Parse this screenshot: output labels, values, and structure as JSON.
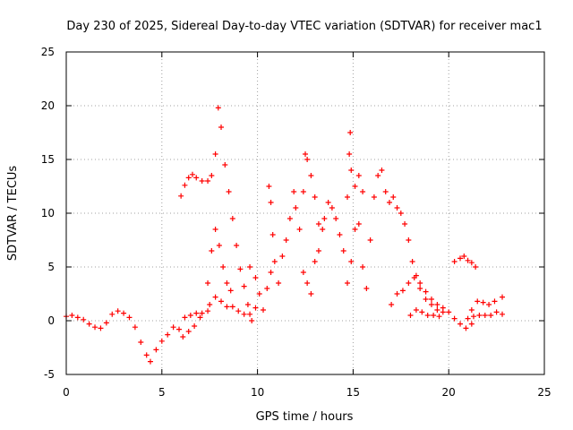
{
  "chart_data": {
    "type": "scatter",
    "title": "Day 230 of 2025, Sidereal Day-to-day VTEC variation (SDTVAR) for receiver mac1",
    "xlabel": "GPS time / hours",
    "ylabel": "SDTVAR / TECUs",
    "xlim": [
      0,
      25
    ],
    "ylim": [
      -5,
      25
    ],
    "xticks": [
      "0",
      "5",
      "10",
      "15",
      "20",
      "25"
    ],
    "yticks": [
      "-5",
      "0",
      "5",
      "10",
      "15",
      "20",
      "25"
    ],
    "grid": true,
    "marker": "+",
    "series": [
      {
        "name": "SDTVAR",
        "color": "#ff0000",
        "points": [
          [
            0.0,
            0.4
          ],
          [
            0.3,
            0.5
          ],
          [
            0.6,
            0.3
          ],
          [
            0.9,
            0.1
          ],
          [
            1.2,
            -0.3
          ],
          [
            1.5,
            -0.6
          ],
          [
            1.8,
            -0.7
          ],
          [
            2.1,
            -0.2
          ],
          [
            2.4,
            0.6
          ],
          [
            2.7,
            0.9
          ],
          [
            3.0,
            0.7
          ],
          [
            3.3,
            0.3
          ],
          [
            3.6,
            -0.6
          ],
          [
            3.9,
            -2.0
          ],
          [
            4.2,
            -3.2
          ],
          [
            4.4,
            -3.8
          ],
          [
            4.7,
            -2.7
          ],
          [
            5.0,
            -1.9
          ],
          [
            5.3,
            -1.3
          ],
          [
            5.6,
            -0.6
          ],
          [
            5.9,
            -0.8
          ],
          [
            6.2,
            0.3
          ],
          [
            6.5,
            0.5
          ],
          [
            6.8,
            0.7
          ],
          [
            7.1,
            0.7
          ],
          [
            7.4,
            0.9
          ],
          [
            7.5,
            1.5
          ],
          [
            7.8,
            2.2
          ],
          [
            8.1,
            1.8
          ],
          [
            8.4,
            1.3
          ],
          [
            8.7,
            1.3
          ],
          [
            9.0,
            0.9
          ],
          [
            9.3,
            0.6
          ],
          [
            9.6,
            0.6
          ],
          [
            9.9,
            1.2
          ],
          [
            6.0,
            11.6
          ],
          [
            6.2,
            12.6
          ],
          [
            6.4,
            13.3
          ],
          [
            6.6,
            13.6
          ],
          [
            6.8,
            13.3
          ],
          [
            7.1,
            13.0
          ],
          [
            7.4,
            13.0
          ],
          [
            7.6,
            13.5
          ],
          [
            7.8,
            15.5
          ],
          [
            7.95,
            19.8
          ],
          [
            8.1,
            18.0
          ],
          [
            8.3,
            14.5
          ],
          [
            8.5,
            12.0
          ],
          [
            8.7,
            9.5
          ],
          [
            8.9,
            7.0
          ],
          [
            9.1,
            4.8
          ],
          [
            9.3,
            3.2
          ],
          [
            9.5,
            1.5
          ],
          [
            9.7,
            0.0
          ],
          [
            7.4,
            3.5
          ],
          [
            7.6,
            6.5
          ],
          [
            7.8,
            8.5
          ],
          [
            8.0,
            7.0
          ],
          [
            8.2,
            5.0
          ],
          [
            8.4,
            3.5
          ],
          [
            8.6,
            2.8
          ],
          [
            6.1,
            -1.5
          ],
          [
            6.4,
            -1.0
          ],
          [
            6.7,
            -0.5
          ],
          [
            7.0,
            0.3
          ],
          [
            9.6,
            5.0
          ],
          [
            9.9,
            4.0
          ],
          [
            10.1,
            2.5
          ],
          [
            10.3,
            1.0
          ],
          [
            10.5,
            3.0
          ],
          [
            10.7,
            4.5
          ],
          [
            10.6,
            12.5
          ],
          [
            10.7,
            11.0
          ],
          [
            10.8,
            8.0
          ],
          [
            10.9,
            5.5
          ],
          [
            11.1,
            3.5
          ],
          [
            11.3,
            6.0
          ],
          [
            11.5,
            7.5
          ],
          [
            11.7,
            9.5
          ],
          [
            11.9,
            12.0
          ],
          [
            12.0,
            10.5
          ],
          [
            12.2,
            8.5
          ],
          [
            12.4,
            12.0
          ],
          [
            12.5,
            15.5
          ],
          [
            12.6,
            15.0
          ],
          [
            12.8,
            13.5
          ],
          [
            13.0,
            11.5
          ],
          [
            13.2,
            9.0
          ],
          [
            13.4,
            8.5
          ],
          [
            12.4,
            4.5
          ],
          [
            12.6,
            3.5
          ],
          [
            12.8,
            2.5
          ],
          [
            13.0,
            5.5
          ],
          [
            13.2,
            6.5
          ],
          [
            13.5,
            9.5
          ],
          [
            13.7,
            11.0
          ],
          [
            13.9,
            10.5
          ],
          [
            14.1,
            9.5
          ],
          [
            14.3,
            8.0
          ],
          [
            14.5,
            6.5
          ],
          [
            14.7,
            11.5
          ],
          [
            14.8,
            15.5
          ],
          [
            14.85,
            17.5
          ],
          [
            14.9,
            14.0
          ],
          [
            15.1,
            12.5
          ],
          [
            15.3,
            13.5
          ],
          [
            15.5,
            12.0
          ],
          [
            14.7,
            3.5
          ],
          [
            14.9,
            5.5
          ],
          [
            15.1,
            8.5
          ],
          [
            15.3,
            9.0
          ],
          [
            15.5,
            5.0
          ],
          [
            15.7,
            3.0
          ],
          [
            15.9,
            7.5
          ],
          [
            16.1,
            11.5
          ],
          [
            16.3,
            13.5
          ],
          [
            16.5,
            14.0
          ],
          [
            16.7,
            12.0
          ],
          [
            16.9,
            11.0
          ],
          [
            17.1,
            11.5
          ],
          [
            17.3,
            10.5
          ],
          [
            17.5,
            10.0
          ],
          [
            17.7,
            9.0
          ],
          [
            17.9,
            7.5
          ],
          [
            18.1,
            5.5
          ],
          [
            18.3,
            4.2
          ],
          [
            18.5,
            3.5
          ],
          [
            18.8,
            2.7
          ],
          [
            19.1,
            2.0
          ],
          [
            19.4,
            1.5
          ],
          [
            19.7,
            1.2
          ],
          [
            20.0,
            0.8
          ],
          [
            20.3,
            0.2
          ],
          [
            20.6,
            -0.3
          ],
          [
            20.9,
            -0.7
          ],
          [
            21.2,
            -0.3
          ],
          [
            17.0,
            1.5
          ],
          [
            17.3,
            2.5
          ],
          [
            17.6,
            2.8
          ],
          [
            17.9,
            3.5
          ],
          [
            18.2,
            4.0
          ],
          [
            18.5,
            3.0
          ],
          [
            18.8,
            2.0
          ],
          [
            19.1,
            1.5
          ],
          [
            19.4,
            1.0
          ],
          [
            19.7,
            0.8
          ],
          [
            18.0,
            0.5
          ],
          [
            18.3,
            1.0
          ],
          [
            18.6,
            0.8
          ],
          [
            18.9,
            0.5
          ],
          [
            19.2,
            0.5
          ],
          [
            19.5,
            0.4
          ],
          [
            21.0,
            0.2
          ],
          [
            21.3,
            0.4
          ],
          [
            21.6,
            0.5
          ],
          [
            21.9,
            0.5
          ],
          [
            22.2,
            0.5
          ],
          [
            22.5,
            0.8
          ],
          [
            22.8,
            0.6
          ],
          [
            21.2,
            1.0
          ],
          [
            21.5,
            1.8
          ],
          [
            21.8,
            1.7
          ],
          [
            22.1,
            1.5
          ],
          [
            22.4,
            1.8
          ],
          [
            22.8,
            2.2
          ],
          [
            20.3,
            5.5
          ],
          [
            20.6,
            5.8
          ],
          [
            20.8,
            6.0
          ],
          [
            21.0,
            5.6
          ],
          [
            21.2,
            5.4
          ],
          [
            21.4,
            5.0
          ]
        ]
      }
    ]
  }
}
